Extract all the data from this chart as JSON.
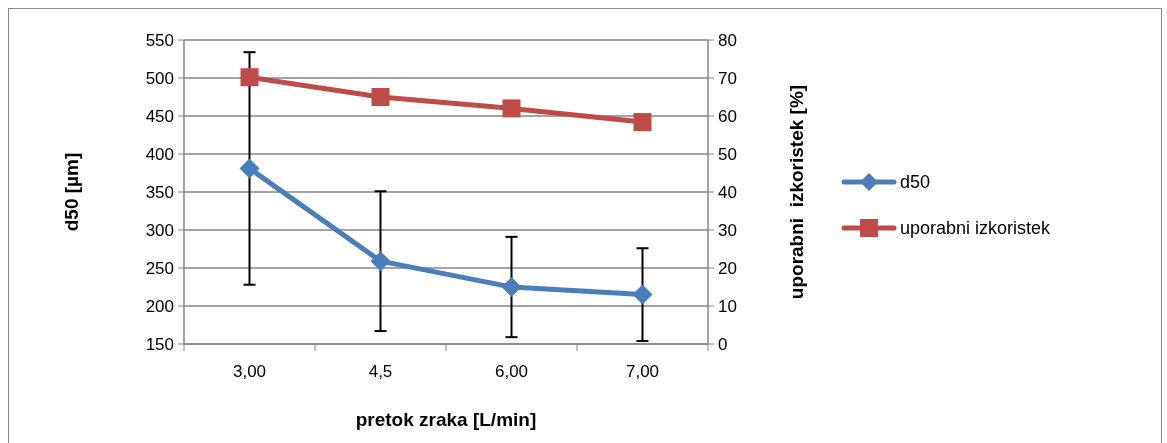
{
  "chart_data": {
    "type": "line",
    "xlabel": "pretok zraka [L/min]",
    "ylabel": "d50 [µm]",
    "y2label": "uporabni  izkoristek [%]",
    "categories": [
      "3,00",
      "4,5",
      "6,00",
      "7,00"
    ],
    "series": [
      {
        "name": "d50",
        "color": "#4a7ebb",
        "values": [
          381,
          259,
          225,
          215
        ],
        "errors": [
          153,
          92,
          66,
          61
        ],
        "marker": "diamond"
      },
      {
        "name": "uporabni izkoristek",
        "color": "#be4b48",
        "values": [
          70.2,
          65,
          62,
          58.4
        ],
        "axis": "y2",
        "marker": "square"
      }
    ],
    "ylim": [
      150,
      550
    ],
    "yticks": [
      150,
      200,
      250,
      300,
      350,
      400,
      450,
      500,
      550
    ],
    "y2lim": [
      0,
      80
    ],
    "y2ticks": [
      0,
      10,
      20,
      30,
      40,
      50,
      60,
      70,
      80
    ],
    "grid": "y",
    "legend": "right"
  }
}
